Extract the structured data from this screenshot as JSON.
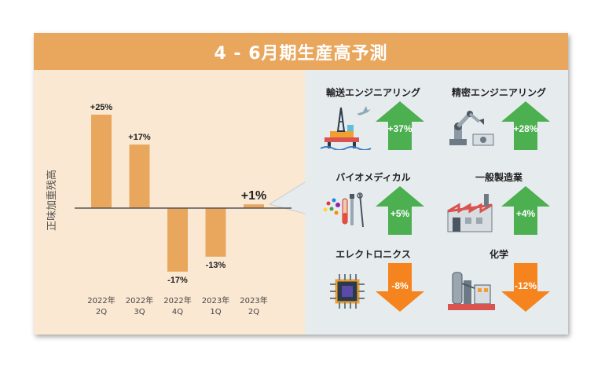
{
  "title": "4 - 6月期生産高予測",
  "chart_data": {
    "type": "bar",
    "ylabel": "正味加重残高",
    "categories": [
      [
        "2022年",
        "2Q"
      ],
      [
        "2022年",
        "3Q"
      ],
      [
        "2022年",
        "4Q"
      ],
      [
        "2023年",
        "1Q"
      ],
      [
        "2023年",
        "2Q"
      ]
    ],
    "values": [
      25,
      17,
      -17,
      -13,
      1
    ],
    "labels": [
      "+25%",
      "+17%",
      "-17%",
      "-13%",
      "+1%"
    ],
    "ylim": [
      -22,
      30
    ],
    "highlight_index": 4
  },
  "sectors": [
    {
      "name": "輸送エンジニアリング",
      "value_label": "+37%",
      "direction": "up",
      "icon": "oil-rig-airplane-icon"
    },
    {
      "name": "精密エンジニアリング",
      "value_label": "+28%",
      "direction": "up",
      "icon": "robot-arm-icon"
    },
    {
      "name": "バイオメディカル",
      "value_label": "+5%",
      "direction": "up",
      "icon": "lab-tools-icon"
    },
    {
      "name": "一般製造業",
      "value_label": "+4%",
      "direction": "up",
      "icon": "factory-icon"
    },
    {
      "name": "エレクトロニクス",
      "value_label": "-8%",
      "direction": "down",
      "icon": "microchip-icon"
    },
    {
      "name": "化学",
      "value_label": "-12%",
      "direction": "down",
      "icon": "chemical-plant-icon"
    }
  ],
  "colors": {
    "bar": "#e9a75e",
    "up": "#4caf50",
    "down": "#f5841f",
    "header": "#e9a75e"
  }
}
